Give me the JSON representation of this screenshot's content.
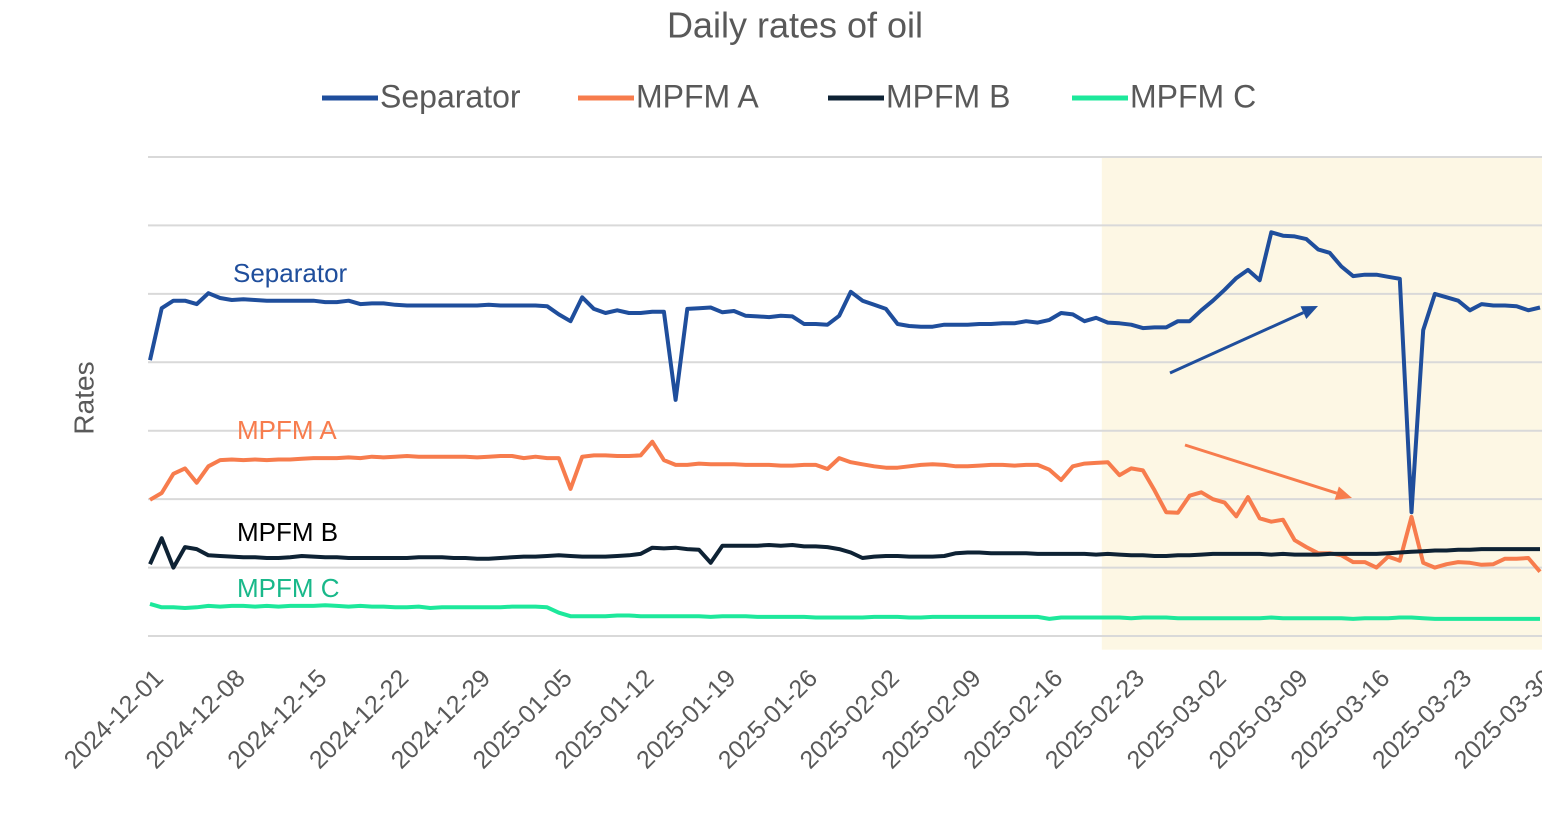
{
  "chart_data": {
    "type": "line",
    "title": "Daily rates of oil",
    "ylabel": "Rates",
    "x": [
      "2024-12-01",
      "2024-12-02",
      "2024-12-03",
      "2024-12-04",
      "2024-12-05",
      "2024-12-06",
      "2024-12-07",
      "2024-12-08",
      "2024-12-09",
      "2024-12-10",
      "2024-12-11",
      "2024-12-12",
      "2024-12-13",
      "2024-12-14",
      "2024-12-15",
      "2024-12-16",
      "2024-12-17",
      "2024-12-18",
      "2024-12-19",
      "2024-12-20",
      "2024-12-21",
      "2024-12-22",
      "2024-12-23",
      "2024-12-24",
      "2024-12-25",
      "2024-12-26",
      "2024-12-27",
      "2024-12-28",
      "2024-12-29",
      "2024-12-30",
      "2024-12-31",
      "2025-01-01",
      "2025-01-02",
      "2025-01-03",
      "2025-01-04",
      "2025-01-05",
      "2025-01-06",
      "2025-01-07",
      "2025-01-08",
      "2025-01-09",
      "2025-01-10",
      "2025-01-11",
      "2025-01-12",
      "2025-01-13",
      "2025-01-14",
      "2025-01-15",
      "2025-01-16",
      "2025-01-17",
      "2025-01-18",
      "2025-01-19",
      "2025-01-20",
      "2025-01-21",
      "2025-01-22",
      "2025-01-23",
      "2025-01-24",
      "2025-01-25",
      "2025-01-26",
      "2025-01-27",
      "2025-01-28",
      "2025-01-29",
      "2025-01-30",
      "2025-01-31",
      "2025-02-01",
      "2025-02-02",
      "2025-02-03",
      "2025-02-04",
      "2025-02-05",
      "2025-02-06",
      "2025-02-07",
      "2025-02-08",
      "2025-02-09",
      "2025-02-10",
      "2025-02-11",
      "2025-02-12",
      "2025-02-13",
      "2025-02-14",
      "2025-02-15",
      "2025-02-16",
      "2025-02-17",
      "2025-02-18",
      "2025-02-19",
      "2025-02-20",
      "2025-02-21",
      "2025-02-22",
      "2025-02-23",
      "2025-02-24",
      "2025-02-25",
      "2025-02-26",
      "2025-02-27",
      "2025-02-28",
      "2025-03-01",
      "2025-03-02",
      "2025-03-03",
      "2025-03-04",
      "2025-03-05",
      "2025-03-06",
      "2025-03-07",
      "2025-03-08",
      "2025-03-09",
      "2025-03-10",
      "2025-03-11",
      "2025-03-12",
      "2025-03-13",
      "2025-03-14",
      "2025-03-15",
      "2025-03-16",
      "2025-03-17",
      "2025-03-18",
      "2025-03-19",
      "2025-03-20",
      "2025-03-21",
      "2025-03-22",
      "2025-03-23",
      "2025-03-24",
      "2025-03-25",
      "2025-03-26",
      "2025-03-27",
      "2025-03-28",
      "2025-03-29",
      "2025-03-30"
    ],
    "xticks": [
      "2024-12-01",
      "2024-12-08",
      "2024-12-15",
      "2024-12-22",
      "2024-12-29",
      "2025-01-05",
      "2025-01-12",
      "2025-01-19",
      "2025-01-26",
      "2025-02-02",
      "2025-02-09",
      "2025-02-16",
      "2025-02-23",
      "2025-03-02",
      "2025-03-09",
      "2025-03-16",
      "2025-03-23",
      "2025-03-30"
    ],
    "ylim": [
      -0.2,
      7
    ],
    "ygrid": [
      0,
      1,
      2,
      3,
      4,
      5,
      6,
      7
    ],
    "legend": "top",
    "highlight_from": "2025-02-21",
    "highlight_color": "#fdf7e4",
    "series": [
      {
        "name": "Separator",
        "color": "#1f4e9c",
        "values": [
          4.03,
          4.79,
          4.9,
          4.9,
          4.85,
          5.01,
          4.94,
          4.91,
          4.92,
          4.91,
          4.9,
          4.9,
          4.9,
          4.9,
          4.9,
          4.88,
          4.88,
          4.9,
          4.85,
          4.86,
          4.86,
          4.84,
          4.83,
          4.83,
          4.83,
          4.83,
          4.83,
          4.83,
          4.83,
          4.84,
          4.83,
          4.83,
          4.83,
          4.83,
          4.82,
          4.7,
          4.6,
          4.95,
          4.78,
          4.72,
          4.76,
          4.72,
          4.72,
          4.74,
          4.74,
          3.45,
          4.78,
          4.79,
          4.8,
          4.73,
          4.75,
          4.68,
          4.67,
          4.66,
          4.68,
          4.67,
          4.56,
          4.56,
          4.55,
          4.68,
          5.03,
          4.9,
          4.84,
          4.78,
          4.56,
          4.53,
          4.52,
          4.52,
          4.55,
          4.55,
          4.55,
          4.56,
          4.56,
          4.57,
          4.57,
          4.6,
          4.58,
          4.62,
          4.72,
          4.7,
          4.6,
          4.65,
          4.58,
          4.57,
          4.55,
          4.5,
          4.51,
          4.51,
          4.6,
          4.6,
          4.76,
          4.9,
          5.06,
          5.23,
          5.35,
          5.2,
          5.9,
          5.85,
          5.84,
          5.8,
          5.65,
          5.6,
          5.4,
          5.26,
          5.28,
          5.28,
          5.25,
          5.22,
          1.81,
          4.47,
          5.0,
          4.95,
          4.9,
          4.76,
          4.85,
          4.83,
          4.83,
          4.82,
          4.76,
          4.8
        ]
      },
      {
        "name": "MPFM A",
        "color": "#f77c4d",
        "values": [
          1.99,
          2.09,
          2.37,
          2.45,
          2.24,
          2.48,
          2.57,
          2.58,
          2.57,
          2.58,
          2.57,
          2.58,
          2.58,
          2.59,
          2.6,
          2.6,
          2.6,
          2.61,
          2.6,
          2.62,
          2.61,
          2.62,
          2.63,
          2.62,
          2.62,
          2.62,
          2.62,
          2.62,
          2.61,
          2.62,
          2.63,
          2.63,
          2.6,
          2.62,
          2.6,
          2.6,
          2.15,
          2.62,
          2.64,
          2.64,
          2.63,
          2.63,
          2.64,
          2.84,
          2.57,
          2.5,
          2.5,
          2.52,
          2.51,
          2.51,
          2.51,
          2.5,
          2.5,
          2.5,
          2.49,
          2.49,
          2.5,
          2.5,
          2.44,
          2.6,
          2.54,
          2.51,
          2.48,
          2.46,
          2.46,
          2.48,
          2.5,
          2.51,
          2.5,
          2.48,
          2.48,
          2.49,
          2.5,
          2.5,
          2.49,
          2.5,
          2.5,
          2.43,
          2.28,
          2.48,
          2.52,
          2.53,
          2.54,
          2.35,
          2.45,
          2.42,
          2.13,
          1.81,
          1.8,
          2.05,
          2.1,
          2.0,
          1.95,
          1.75,
          2.03,
          1.72,
          1.67,
          1.7,
          1.4,
          1.3,
          1.21,
          1.21,
          1.18,
          1.08,
          1.08,
          1.0,
          1.16,
          1.1,
          1.74,
          1.07,
          1.0,
          1.05,
          1.08,
          1.07,
          1.04,
          1.05,
          1.13,
          1.13,
          1.14,
          0.94
        ]
      },
      {
        "name": "MPFM B",
        "color": "#0e2234",
        "values": [
          1.05,
          1.43,
          1.0,
          1.3,
          1.27,
          1.18,
          1.17,
          1.16,
          1.15,
          1.15,
          1.14,
          1.14,
          1.15,
          1.17,
          1.16,
          1.15,
          1.15,
          1.14,
          1.14,
          1.14,
          1.14,
          1.14,
          1.14,
          1.15,
          1.15,
          1.15,
          1.14,
          1.14,
          1.13,
          1.13,
          1.14,
          1.15,
          1.16,
          1.16,
          1.17,
          1.18,
          1.17,
          1.16,
          1.16,
          1.16,
          1.17,
          1.18,
          1.2,
          1.29,
          1.28,
          1.29,
          1.27,
          1.26,
          1.07,
          1.32,
          1.32,
          1.32,
          1.32,
          1.33,
          1.32,
          1.33,
          1.31,
          1.31,
          1.3,
          1.27,
          1.22,
          1.14,
          1.16,
          1.17,
          1.17,
          1.16,
          1.16,
          1.16,
          1.17,
          1.21,
          1.22,
          1.22,
          1.21,
          1.21,
          1.21,
          1.21,
          1.2,
          1.2,
          1.2,
          1.2,
          1.2,
          1.19,
          1.2,
          1.19,
          1.18,
          1.18,
          1.17,
          1.17,
          1.18,
          1.18,
          1.19,
          1.2,
          1.2,
          1.2,
          1.2,
          1.2,
          1.19,
          1.2,
          1.19,
          1.19,
          1.19,
          1.2,
          1.2,
          1.2,
          1.2,
          1.2,
          1.21,
          1.22,
          1.23,
          1.24,
          1.25,
          1.25,
          1.26,
          1.26,
          1.27,
          1.27,
          1.27,
          1.27,
          1.27,
          1.27
        ]
      },
      {
        "name": "MPFM C",
        "color": "#1de89b",
        "values": [
          0.47,
          0.42,
          0.42,
          0.41,
          0.42,
          0.44,
          0.43,
          0.44,
          0.44,
          0.43,
          0.44,
          0.43,
          0.44,
          0.44,
          0.44,
          0.45,
          0.44,
          0.43,
          0.44,
          0.43,
          0.43,
          0.42,
          0.42,
          0.43,
          0.41,
          0.42,
          0.42,
          0.42,
          0.42,
          0.42,
          0.42,
          0.43,
          0.43,
          0.43,
          0.42,
          0.34,
          0.29,
          0.29,
          0.29,
          0.29,
          0.3,
          0.3,
          0.29,
          0.29,
          0.29,
          0.29,
          0.29,
          0.29,
          0.28,
          0.29,
          0.29,
          0.29,
          0.28,
          0.28,
          0.28,
          0.28,
          0.28,
          0.27,
          0.27,
          0.27,
          0.27,
          0.27,
          0.28,
          0.28,
          0.28,
          0.27,
          0.27,
          0.28,
          0.28,
          0.28,
          0.28,
          0.28,
          0.28,
          0.28,
          0.28,
          0.28,
          0.28,
          0.25,
          0.27,
          0.27,
          0.27,
          0.27,
          0.27,
          0.27,
          0.26,
          0.27,
          0.27,
          0.27,
          0.26,
          0.26,
          0.26,
          0.26,
          0.26,
          0.26,
          0.26,
          0.26,
          0.27,
          0.26,
          0.26,
          0.26,
          0.26,
          0.26,
          0.26,
          0.25,
          0.26,
          0.26,
          0.26,
          0.27,
          0.27,
          0.26,
          0.25,
          0.25,
          0.25,
          0.25,
          0.25,
          0.25,
          0.25,
          0.25,
          0.25,
          0.25
        ]
      }
    ]
  }
}
